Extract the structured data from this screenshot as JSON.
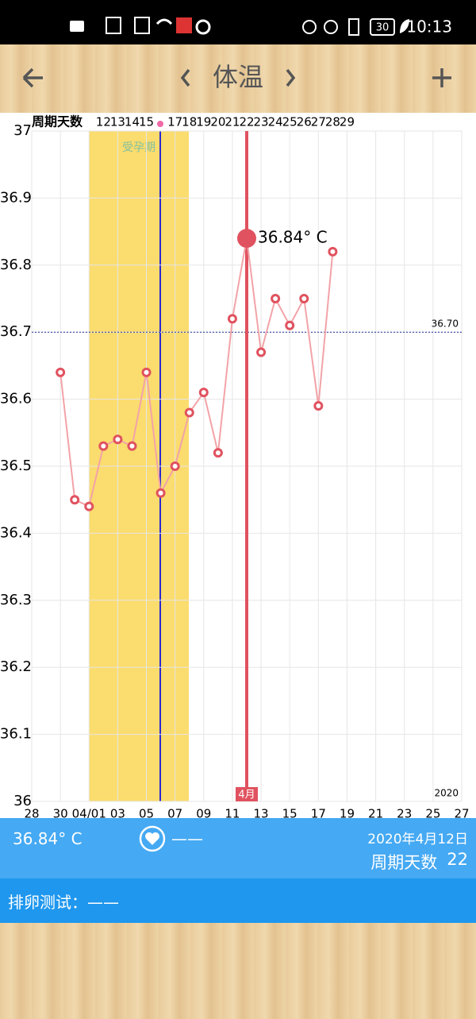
{
  "status_bar": {
    "time": "10:13",
    "battery": "30"
  },
  "header": {
    "title": "体温"
  },
  "chart_data": {
    "type": "line",
    "top_axis_title": "周期天数",
    "cycle_days": [
      null,
      null,
      null,
      null,
      null,
      12,
      13,
      14,
      15,
      null,
      17,
      18,
      19,
      20,
      21,
      22,
      23,
      24,
      25,
      26,
      27,
      28,
      29,
      null,
      null,
      null,
      null,
      null,
      null,
      null,
      null
    ],
    "categories": [
      "28",
      null,
      "30",
      null,
      "04/01",
      null,
      "03",
      null,
      "05",
      null,
      "07",
      null,
      "09",
      null,
      "11",
      null,
      "13",
      null,
      "15",
      null,
      "17",
      null,
      "19",
      null,
      "21",
      null,
      "23",
      null,
      "25",
      null,
      "27"
    ],
    "values": [
      null,
      null,
      36.64,
      36.45,
      36.44,
      36.53,
      36.54,
      36.53,
      36.64,
      36.46,
      36.5,
      36.58,
      36.61,
      36.52,
      36.72,
      36.84,
      36.67,
      36.75,
      36.71,
      36.75,
      36.59,
      36.82,
      null,
      null,
      null,
      null,
      null,
      null,
      null,
      null,
      null
    ],
    "value_labels": [
      null,
      null,
      null,
      null,
      null,
      null,
      null,
      null,
      null,
      null,
      null,
      null,
      null,
      null,
      null,
      "36.84° C",
      null,
      null,
      null,
      null,
      null,
      null,
      null,
      null,
      null,
      null,
      null,
      null,
      null,
      null,
      null
    ],
    "color": "#e0525f",
    "ylim": [
      36,
      37
    ],
    "yticks": [
      36,
      36.1,
      36.2,
      36.3,
      36.4,
      36.5,
      36.6,
      36.7,
      36.8,
      36.9,
      37
    ],
    "grid": true,
    "reference_line": {
      "value": 36.7,
      "label": "36.70"
    },
    "fertile_label": "受孕期",
    "month_label": "4月",
    "year_label": "2020"
  },
  "summary": {
    "temperature": "36.84° C",
    "note": "——",
    "date": "2020年4月12日",
    "cycle_day_label": "周期天数",
    "cycle_day": 22
  },
  "ovulation_test": {
    "label": "排卵测试：——"
  }
}
